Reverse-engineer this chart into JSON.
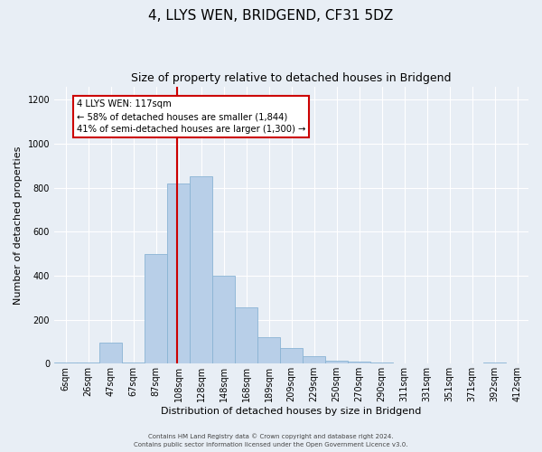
{
  "title": "4, LLYS WEN, BRIDGEND, CF31 5DZ",
  "subtitle": "Size of property relative to detached houses in Bridgend",
  "xlabel": "Distribution of detached houses by size in Bridgend",
  "ylabel": "Number of detached properties",
  "bin_labels": [
    "6sqm",
    "26sqm",
    "47sqm",
    "67sqm",
    "87sqm",
    "108sqm",
    "128sqm",
    "148sqm",
    "168sqm",
    "189sqm",
    "209sqm",
    "229sqm",
    "250sqm",
    "270sqm",
    "290sqm",
    "311sqm",
    "331sqm",
    "351sqm",
    "371sqm",
    "392sqm",
    "412sqm"
  ],
  "bar_heights": [
    5,
    5,
    95,
    5,
    500,
    820,
    850,
    400,
    255,
    120,
    70,
    35,
    15,
    10,
    5,
    3,
    2,
    1,
    1,
    5,
    1
  ],
  "bar_color": "#b8cfe8",
  "bar_edge_color": "#8ab4d4",
  "vline_bin": 5,
  "vline_color": "#cc0000",
  "annotation_text": "4 LLYS WEN: 117sqm\n← 58% of detached houses are smaller (1,844)\n41% of semi-detached houses are larger (1,300) →",
  "annotation_box_color": "#cc0000",
  "ylim": [
    0,
    1260
  ],
  "yticks": [
    0,
    200,
    400,
    600,
    800,
    1000,
    1200
  ],
  "fig_bg_color": "#e8eef5",
  "plot_bg_color": "#e8eef5",
  "footer_line1": "Contains HM Land Registry data © Crown copyright and database right 2024.",
  "footer_line2": "Contains public sector information licensed under the Open Government Licence v3.0.",
  "title_fontsize": 11,
  "subtitle_fontsize": 9,
  "ylabel_fontsize": 8,
  "xlabel_fontsize": 8,
  "tick_fontsize": 7,
  "footer_fontsize": 5
}
